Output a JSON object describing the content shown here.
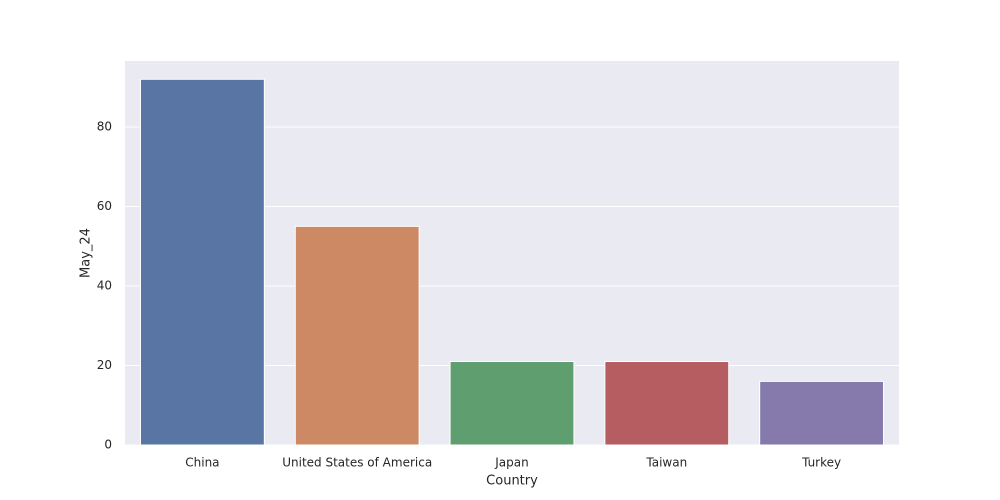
{
  "chart_data": {
    "type": "bar",
    "x_label": "Country",
    "y_label": "May_24",
    "categories": [
      "China",
      "United States of America",
      "Japan",
      "Taiwan",
      "Turkey"
    ],
    "values": [
      92,
      55,
      21,
      21,
      16
    ],
    "colors": [
      "#5975a4",
      "#cc8963",
      "#5f9e6e",
      "#b55d60",
      "#857aab"
    ],
    "ylim": [
      0,
      96.6
    ],
    "yticks": [
      0,
      20,
      40,
      60,
      80
    ],
    "grid": true
  }
}
